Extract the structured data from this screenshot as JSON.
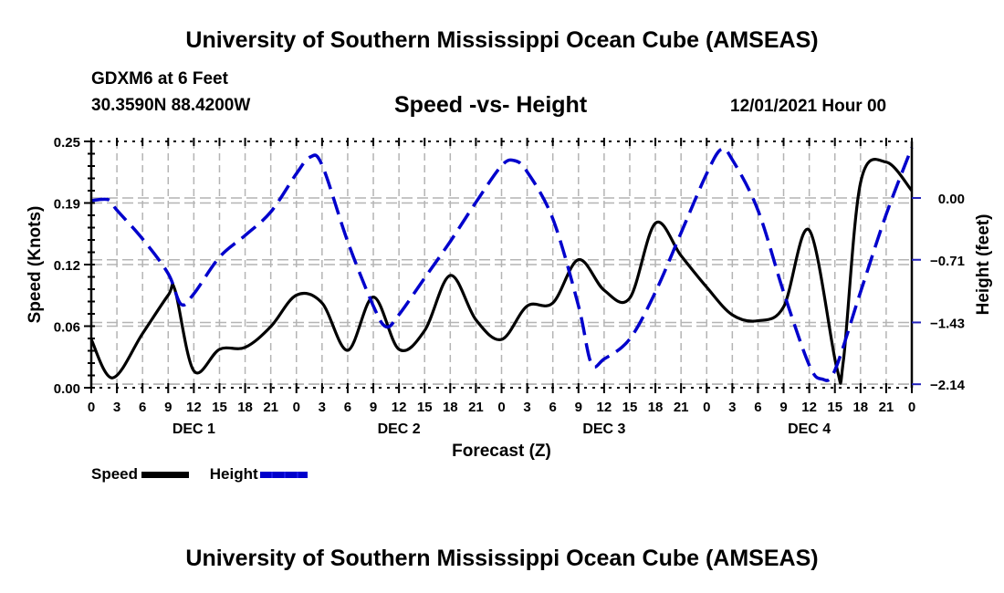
{
  "header": {
    "main_title": "University of Southern Mississippi Ocean Cube (AMSEAS)",
    "station": "GDXM6 at 6 Feet",
    "coords": "30.3590N  88.4200W",
    "subtitle": "Speed -vs- Height",
    "datestamp": "12/01/2021 Hour 00"
  },
  "footer": {
    "title": "University of Southern Mississippi Ocean Cube (AMSEAS)"
  },
  "legend": {
    "speed_label": "Speed",
    "height_label": "Height"
  },
  "colors": {
    "speed": "#000000",
    "height": "#0000cc",
    "grid": "#b4b4b4"
  },
  "chart_data": {
    "type": "line",
    "title": "Speed -vs- Height",
    "xlabel": "Forecast (Z)",
    "ylabel": "Speed (Knots)",
    "y2label": "Height (feet)",
    "xlim": [
      0,
      96
    ],
    "ylim": [
      0,
      0.25
    ],
    "y2lim": [
      -2.18,
      0.65
    ],
    "grid": true,
    "legend_position": "bottom-left",
    "x_ticks": [
      0,
      3,
      6,
      9,
      12,
      15,
      18,
      21,
      24,
      27,
      30,
      33,
      36,
      39,
      42,
      45,
      48,
      51,
      54,
      57,
      60,
      63,
      66,
      69,
      72,
      75,
      78,
      81,
      84,
      87,
      90,
      93,
      96
    ],
    "x_tick_labels": [
      "0",
      "3",
      "6",
      "9",
      "12",
      "15",
      "18",
      "21",
      "0",
      "3",
      "6",
      "9",
      "12",
      "15",
      "18",
      "21",
      "0",
      "3",
      "6",
      "9",
      "12",
      "15",
      "18",
      "21",
      "0",
      "3",
      "6",
      "9",
      "12",
      "15",
      "18",
      "21",
      "0"
    ],
    "day_labels": [
      {
        "label": "DEC 1",
        "hour": 12
      },
      {
        "label": "DEC 2",
        "hour": 36
      },
      {
        "label": "DEC 3",
        "hour": 60
      },
      {
        "label": "DEC 4",
        "hour": 84
      }
    ],
    "y_ticks": [
      {
        "value": 0.0,
        "label": "0.00"
      },
      {
        "value": 0.0625,
        "label": "0.06"
      },
      {
        "value": 0.125,
        "label": "0.12"
      },
      {
        "value": 0.1875,
        "label": "0.19"
      },
      {
        "value": 0.25,
        "label": "0.25"
      }
    ],
    "y2_ticks": [
      {
        "value": 0.0,
        "label": "0.00"
      },
      {
        "value": -0.71,
        "label": "−0.71"
      },
      {
        "value": -1.43,
        "label": "−1.43"
      },
      {
        "value": -2.14,
        "label": "−2.14"
      }
    ],
    "series": [
      {
        "name": "Speed",
        "axis": "left",
        "style": "solid",
        "x": [
          0,
          2.5,
          6,
          9,
          9.8,
          12,
          15,
          18,
          21,
          24,
          27,
          30,
          33,
          36,
          39,
          42,
          45,
          48,
          51,
          54,
          57,
          60,
          63,
          66,
          69,
          72,
          75,
          78,
          81,
          84,
          87.2,
          88,
          90,
          93,
          96
        ],
        "values": [
          0.049,
          0.01,
          0.055,
          0.094,
          0.099,
          0.017,
          0.039,
          0.041,
          0.062,
          0.094,
          0.086,
          0.038,
          0.092,
          0.039,
          0.058,
          0.114,
          0.069,
          0.049,
          0.083,
          0.086,
          0.13,
          0.099,
          0.091,
          0.167,
          0.134,
          0.102,
          0.074,
          0.068,
          0.082,
          0.16,
          0.021,
          0.028,
          0.208,
          0.229,
          0.2
        ]
      },
      {
        "name": "Height",
        "axis": "right",
        "style": "dashed",
        "x": [
          0,
          2,
          3,
          6,
          9,
          10.5,
          12,
          15,
          18,
          21,
          24,
          25.6,
          27,
          30,
          33,
          34.5,
          36,
          39,
          42,
          45,
          48,
          49.5,
          51,
          54,
          57,
          58.5,
          60,
          63,
          66,
          69,
          72,
          73.7,
          75,
          78,
          81,
          84,
          85.5,
          87,
          90,
          93,
          96
        ],
        "values": [
          -0.03,
          -0.02,
          -0.14,
          -0.47,
          -0.87,
          -1.22,
          -1.1,
          -0.68,
          -0.43,
          -0.16,
          0.28,
          0.47,
          0.38,
          -0.5,
          -1.24,
          -1.48,
          -1.34,
          -0.92,
          -0.5,
          -0.05,
          0.37,
          0.43,
          0.3,
          -0.24,
          -1.24,
          -1.9,
          -1.85,
          -1.62,
          -1.08,
          -0.4,
          0.28,
          0.56,
          0.44,
          -0.14,
          -1.08,
          -1.92,
          -2.08,
          -1.98,
          -1.08,
          -0.19,
          0.58
        ]
      }
    ]
  }
}
